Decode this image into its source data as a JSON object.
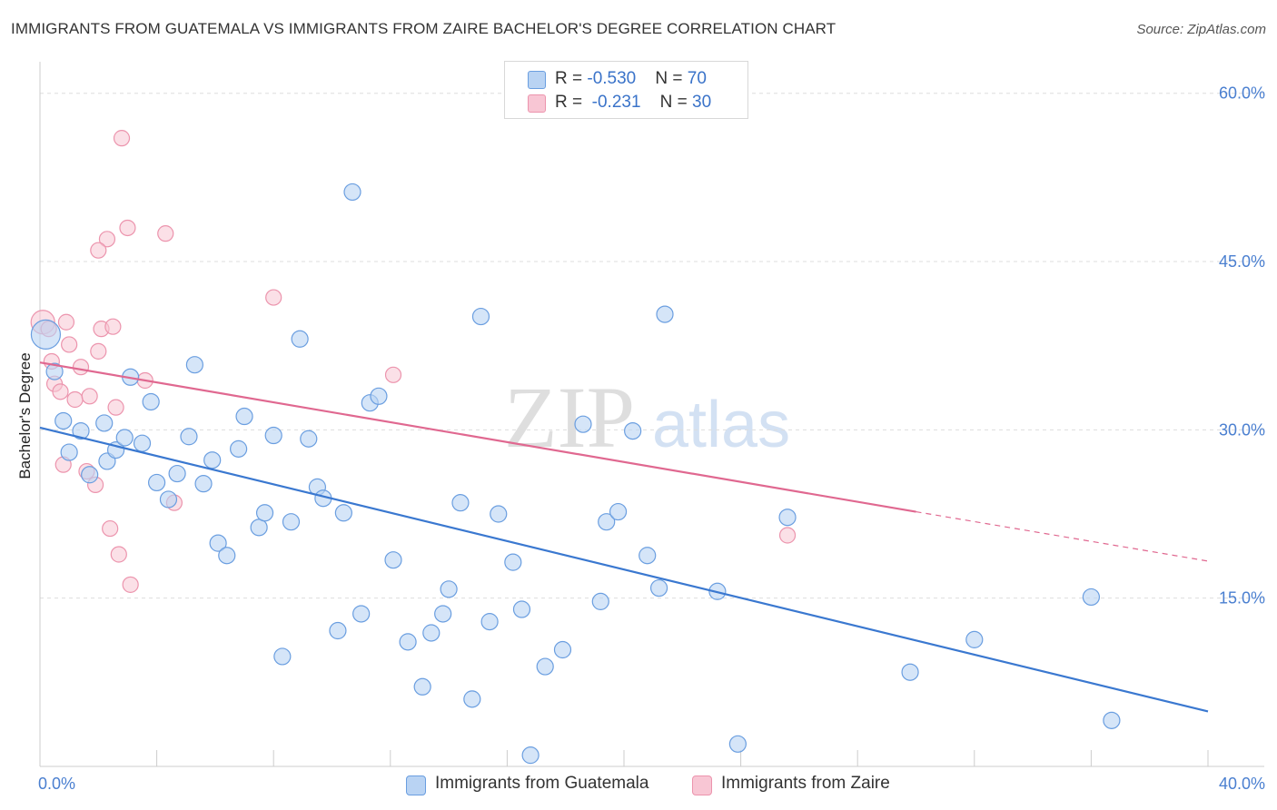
{
  "title": "IMMIGRANTS FROM GUATEMALA VS IMMIGRANTS FROM ZAIRE BACHELOR'S DEGREE CORRELATION CHART",
  "source": "Source: ZipAtlas.com",
  "watermark": {
    "zip": "ZIP",
    "atlas": "atlas"
  },
  "colors": {
    "guatemala_fill": "#b9d3f3",
    "guatemala_stroke": "#6a9ee0",
    "guatemala_line": "#3a78d0",
    "zaire_fill": "#f8c6d4",
    "zaire_stroke": "#ec94ad",
    "zaire_line": "#e06890",
    "tick_label": "#4a7fd0",
    "grid": "#dddddd"
  },
  "legend_top": {
    "rows": [
      {
        "r_label": "R = ",
        "r_value": "-0.530",
        "n_label": "N = ",
        "n_value": "70"
      },
      {
        "r_label": "R = ",
        "r_value": " -0.231",
        "n_label": "N = ",
        "n_value": "30"
      }
    ]
  },
  "chart_data": {
    "type": "scatter",
    "title": "IMMIGRANTS FROM GUATEMALA VS IMMIGRANTS FROM ZAIRE BACHELOR'S DEGREE CORRELATION CHART",
    "xlabel": "",
    "ylabel": "Bachelor's Degree",
    "xlim": [
      0,
      40
    ],
    "ylim": [
      0,
      62
    ],
    "x_tick_labels": [
      "0.0%",
      "40.0%"
    ],
    "y_ticks": [
      15,
      30,
      45,
      60
    ],
    "y_tick_labels": [
      "15.0%",
      "30.0%",
      "45.0%",
      "60.0%"
    ],
    "grid": true,
    "legend_position": "bottom",
    "series": [
      {
        "name": "Immigrants from Guatemala",
        "r": -0.53,
        "n": 70,
        "trend": {
          "x": [
            0,
            40
          ],
          "y": [
            30.2,
            4.9
          ]
        },
        "points": [
          [
            0.2,
            38.5
          ],
          [
            0.5,
            35.2
          ],
          [
            0.8,
            30.8
          ],
          [
            1.0,
            28.0
          ],
          [
            1.4,
            29.9
          ],
          [
            1.7,
            26.0
          ],
          [
            2.2,
            30.6
          ],
          [
            2.3,
            27.2
          ],
          [
            2.6,
            28.2
          ],
          [
            2.9,
            29.3
          ],
          [
            3.1,
            34.7
          ],
          [
            3.5,
            28.8
          ],
          [
            3.8,
            32.5
          ],
          [
            4.0,
            25.3
          ],
          [
            4.4,
            23.8
          ],
          [
            4.7,
            26.1
          ],
          [
            5.1,
            29.4
          ],
          [
            5.3,
            35.8
          ],
          [
            5.6,
            25.2
          ],
          [
            5.9,
            27.3
          ],
          [
            6.1,
            19.9
          ],
          [
            6.4,
            18.8
          ],
          [
            6.8,
            28.3
          ],
          [
            7.0,
            31.2
          ],
          [
            7.5,
            21.3
          ],
          [
            7.7,
            22.6
          ],
          [
            8.0,
            29.5
          ],
          [
            8.3,
            9.8
          ],
          [
            8.6,
            21.8
          ],
          [
            8.9,
            38.1
          ],
          [
            9.2,
            29.2
          ],
          [
            9.5,
            24.9
          ],
          [
            9.7,
            23.9
          ],
          [
            10.2,
            12.1
          ],
          [
            10.4,
            22.6
          ],
          [
            10.7,
            51.2
          ],
          [
            11.0,
            13.6
          ],
          [
            11.3,
            32.4
          ],
          [
            11.6,
            33.0
          ],
          [
            12.1,
            18.4
          ],
          [
            12.6,
            11.1
          ],
          [
            13.1,
            7.1
          ],
          [
            13.4,
            11.9
          ],
          [
            13.8,
            13.6
          ],
          [
            14.0,
            15.8
          ],
          [
            14.4,
            23.5
          ],
          [
            14.8,
            6.0
          ],
          [
            15.1,
            40.1
          ],
          [
            15.4,
            12.9
          ],
          [
            15.7,
            22.5
          ],
          [
            16.2,
            18.2
          ],
          [
            16.5,
            14.0
          ],
          [
            16.8,
            1.0
          ],
          [
            17.3,
            8.9
          ],
          [
            17.9,
            10.4
          ],
          [
            18.6,
            30.5
          ],
          [
            19.2,
            14.7
          ],
          [
            19.4,
            21.8
          ],
          [
            19.8,
            22.7
          ],
          [
            20.3,
            29.9
          ],
          [
            20.8,
            18.8
          ],
          [
            21.2,
            15.9
          ],
          [
            21.4,
            40.3
          ],
          [
            23.2,
            15.6
          ],
          [
            23.9,
            2.0
          ],
          [
            25.6,
            22.2
          ],
          [
            29.8,
            8.4
          ],
          [
            32.0,
            11.3
          ],
          [
            36.0,
            15.1
          ],
          [
            36.7,
            4.1
          ]
        ]
      },
      {
        "name": "Immigrants from Zaire",
        "r": -0.231,
        "n": 30,
        "trend": {
          "x": [
            0,
            30
          ],
          "y": [
            36.0,
            22.7
          ]
        },
        "trend_extension": {
          "x": [
            30,
            40
          ],
          "y": [
            22.7,
            18.3
          ]
        },
        "points": [
          [
            0.1,
            39.6
          ],
          [
            0.3,
            39.0
          ],
          [
            0.4,
            36.1
          ],
          [
            0.5,
            34.1
          ],
          [
            0.7,
            33.4
          ],
          [
            0.8,
            26.9
          ],
          [
            0.9,
            39.6
          ],
          [
            1.0,
            37.6
          ],
          [
            1.2,
            32.7
          ],
          [
            1.4,
            35.6
          ],
          [
            1.6,
            26.3
          ],
          [
            1.7,
            33.0
          ],
          [
            1.9,
            25.1
          ],
          [
            2.0,
            37.0
          ],
          [
            2.1,
            39.0
          ],
          [
            2.3,
            47.0
          ],
          [
            2.4,
            21.2
          ],
          [
            2.5,
            39.2
          ],
          [
            2.6,
            32.0
          ],
          [
            2.7,
            18.9
          ],
          [
            2.8,
            56.0
          ],
          [
            3.0,
            48.0
          ],
          [
            3.1,
            16.2
          ],
          [
            3.6,
            34.4
          ],
          [
            4.3,
            47.5
          ],
          [
            4.6,
            23.5
          ],
          [
            2.0,
            46.0
          ],
          [
            8.0,
            41.8
          ],
          [
            12.1,
            34.9
          ],
          [
            25.6,
            20.6
          ]
        ]
      }
    ]
  }
}
